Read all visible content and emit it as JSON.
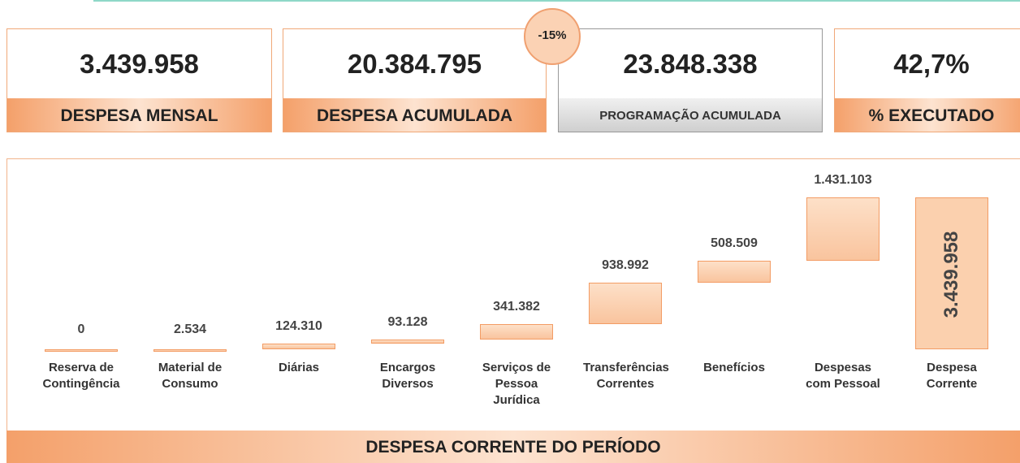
{
  "cards": [
    {
      "value": "3.439.958",
      "label": "DESPESA MENSAL"
    },
    {
      "value": "20.384.795",
      "label": "DESPESA ACUMULADA"
    },
    {
      "value": "23.848.338",
      "label": "PROGRAMAÇÃO ACUMULADA"
    },
    {
      "value": "42,7%",
      "label": "% EXECUTADO"
    }
  ],
  "badge": "-15%",
  "chart_data": {
    "type": "waterfall",
    "title": "DESPESA CORRENTE DO PERÍODO",
    "categories": [
      "Reserva de Contingência",
      "Material de Consumo",
      "Diárias",
      "Encargos Diversos",
      "Serviços de Pessoa Jurídica",
      "Transferências Correntes",
      "Benefícios",
      "Despesas com Pessoal",
      "Despesa Corrente"
    ],
    "values": [
      0,
      2534,
      124310,
      93128,
      341382,
      938992,
      508509,
      1431103,
      3439958
    ],
    "value_labels": [
      "0",
      "2.534",
      "124.310",
      "93.128",
      "341.382",
      "938.992",
      "508.509",
      "1.431.103",
      "3.439.958"
    ],
    "is_total": [
      false,
      false,
      false,
      false,
      false,
      false,
      false,
      false,
      true
    ],
    "color": "#fbd0ae",
    "ylim": [
      0,
      4000000
    ]
  }
}
